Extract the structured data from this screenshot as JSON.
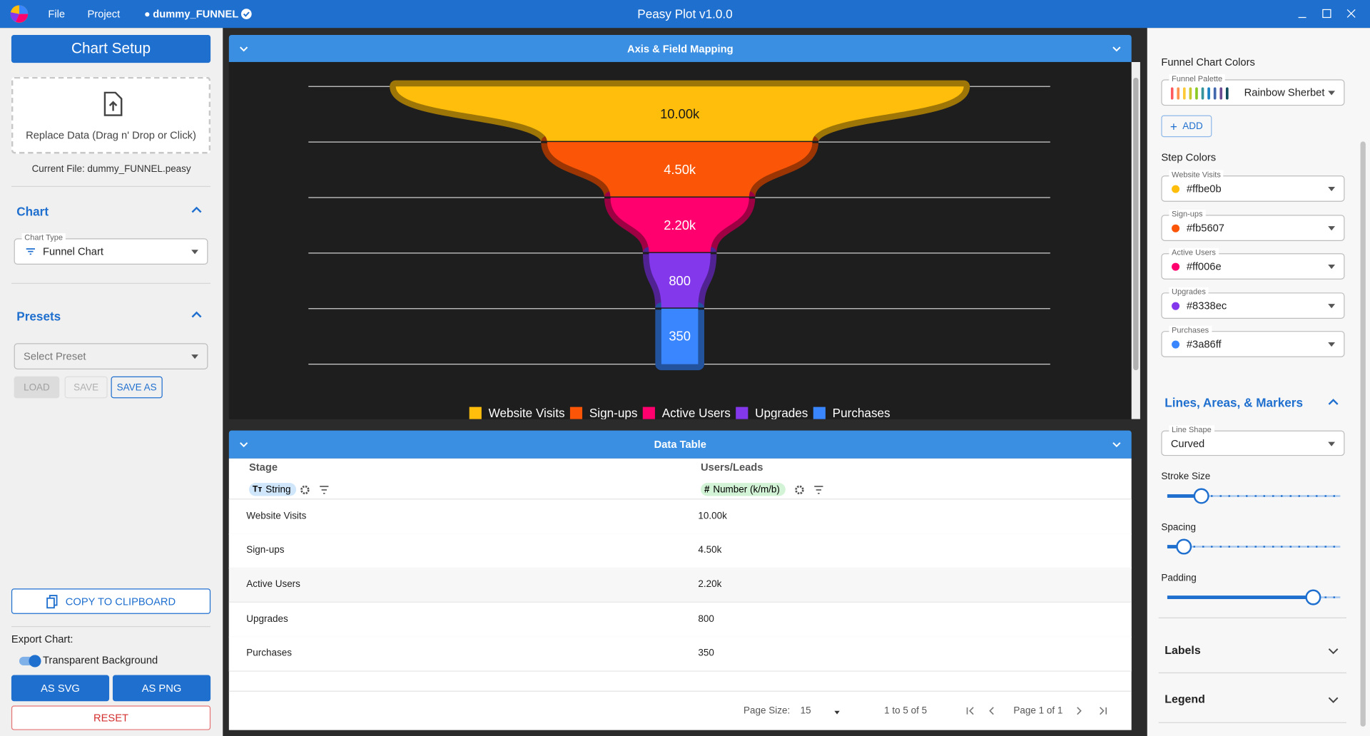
{
  "titlebar": {
    "menu": [
      "File",
      "Project"
    ],
    "file": "dummy_FUNNEL",
    "app_title": "Peasy Plot v1.0.0"
  },
  "left": {
    "setup_button": "Chart Setup",
    "dropzone": "Replace Data (Drag n' Drop or Click)",
    "current_file": "Current File: dummy_FUNNEL.peasy",
    "chart_section": "Chart",
    "chart_type_label": "Chart Type",
    "chart_type": "Funnel Chart",
    "presets_section": "Presets",
    "preset_placeholder": "Select Preset",
    "preset_buttons": [
      "LOAD",
      "SAVE",
      "SAVE AS"
    ],
    "copy": "COPY TO CLIPBOARD",
    "export_label": "Export Chart:",
    "transparent": "Transparent Background",
    "export_buttons": [
      "AS SVG",
      "AS PNG"
    ],
    "reset": "RESET"
  },
  "center": {
    "mapping_header": "Axis & Field Mapping",
    "table_header": "Data Table",
    "columns": [
      {
        "name": "Stage",
        "type": "String"
      },
      {
        "name": "Users/Leads",
        "type": "Number (k/m/b)"
      }
    ],
    "footer": {
      "page_size_label": "Page Size:",
      "page_size": 15,
      "range": "1 to 5 of 5",
      "page": "Page 1 of 1"
    }
  },
  "right": {
    "palette_section": "Funnel Chart Colors",
    "palette_label": "Funnel Palette",
    "palette": "Rainbow Sherbet",
    "add": "ADD",
    "step_colors": "Step Colors",
    "lines_section": "Lines, Areas, & Markers",
    "line_shape_label": "Line Shape",
    "line_shape": "Curved",
    "sliders": [
      "Stroke Size",
      "Spacing",
      "Padding"
    ],
    "labels_section": "Labels",
    "legend_section": "Legend"
  },
  "chart_data": {
    "type": "funnel",
    "categories": [
      "Website Visits",
      "Sign-ups",
      "Active Users",
      "Upgrades",
      "Purchases"
    ],
    "values": [
      10000,
      4500,
      2200,
      800,
      350
    ],
    "value_labels": [
      "10.00k",
      "4.50k",
      "2.20k",
      "800",
      "350"
    ],
    "colors": [
      "#ffbe0b",
      "#fb5607",
      "#ff006e",
      "#8338ec",
      "#3a86ff"
    ],
    "legend": true
  }
}
